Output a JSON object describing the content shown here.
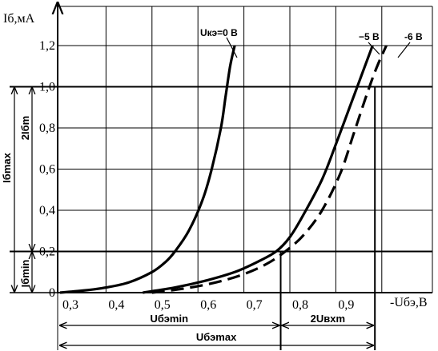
{
  "chart_data": {
    "type": "line",
    "ylabel": "Iб,мА",
    "xlabel": "-Uбэ,В",
    "xlim": [
      0.3,
      1.05
    ],
    "ylim": [
      0,
      1.3
    ],
    "grid": true,
    "x_ticks": [
      "0,3",
      "0,4",
      "0,5",
      "0,6",
      "0,7",
      "0,8",
      "0,9"
    ],
    "y_ticks": [
      "0",
      "0,2",
      "0,4",
      "0,6",
      "0,8",
      "1,0",
      "1,2"
    ],
    "series": [
      {
        "name": "Uкэ=0 В",
        "style": "solid",
        "points": [
          [
            0.3,
            0.0
          ],
          [
            0.35,
            0.01
          ],
          [
            0.4,
            0.025
          ],
          [
            0.45,
            0.05
          ],
          [
            0.5,
            0.1
          ],
          [
            0.53,
            0.15
          ],
          [
            0.55,
            0.2
          ],
          [
            0.58,
            0.3
          ],
          [
            0.61,
            0.45
          ],
          [
            0.63,
            0.6
          ],
          [
            0.65,
            0.8
          ],
          [
            0.66,
            0.95
          ],
          [
            0.67,
            1.1
          ],
          [
            0.68,
            1.2
          ]
        ]
      },
      {
        "name": "−5 В",
        "style": "solid",
        "points": [
          [
            0.48,
            0.0
          ],
          [
            0.55,
            0.025
          ],
          [
            0.62,
            0.06
          ],
          [
            0.68,
            0.1
          ],
          [
            0.73,
            0.15
          ],
          [
            0.77,
            0.2
          ],
          [
            0.8,
            0.27
          ],
          [
            0.83,
            0.38
          ],
          [
            0.87,
            0.55
          ],
          [
            0.9,
            0.72
          ],
          [
            0.93,
            0.9
          ],
          [
            0.96,
            1.08
          ],
          [
            0.98,
            1.2
          ]
        ]
      },
      {
        "name": "-6 В",
        "style": "dashed",
        "points": [
          [
            0.5,
            0.0
          ],
          [
            0.57,
            0.02
          ],
          [
            0.64,
            0.05
          ],
          [
            0.7,
            0.09
          ],
          [
            0.75,
            0.14
          ],
          [
            0.79,
            0.2
          ],
          [
            0.83,
            0.28
          ],
          [
            0.87,
            0.4
          ],
          [
            0.91,
            0.58
          ],
          [
            0.94,
            0.78
          ],
          [
            0.97,
            0.98
          ],
          [
            0.99,
            1.1
          ],
          [
            1.01,
            1.2
          ]
        ]
      }
    ],
    "reference_lines": {
      "y": [
        0.2,
        1.0
      ],
      "x": [
        0.78,
        0.985
      ]
    },
    "annotations": {
      "ib_max": "Iбmax",
      "ib_min": "Iбmin",
      "two_ibm": "2Iбm",
      "ube_min": "Uбэmin",
      "two_uvxm": "2Uвхm",
      "ube_max": "Uбэmax"
    }
  }
}
